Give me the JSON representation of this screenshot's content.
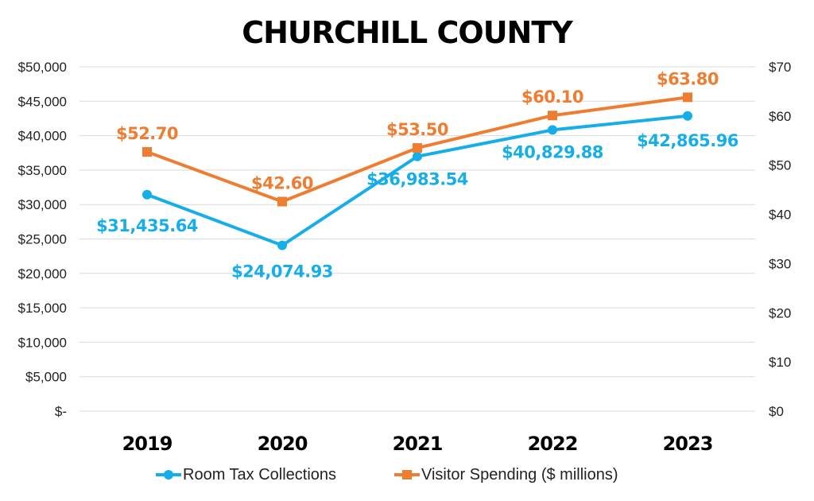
{
  "chart_data": {
    "type": "line",
    "title": "CHURCHILL COUNTY",
    "categories": [
      "2019",
      "2020",
      "2021",
      "2022",
      "2023"
    ],
    "y_left": {
      "ylim": [
        0,
        50000
      ],
      "ticks": [
        {
          "value": 0,
          "label": "$-"
        },
        {
          "value": 5000,
          "label": "$5,000"
        },
        {
          "value": 10000,
          "label": "$10,000"
        },
        {
          "value": 15000,
          "label": "$15,000"
        },
        {
          "value": 20000,
          "label": "$20,000"
        },
        {
          "value": 25000,
          "label": "$25,000"
        },
        {
          "value": 30000,
          "label": "$30,000"
        },
        {
          "value": 35000,
          "label": "$35,000"
        },
        {
          "value": 40000,
          "label": "$40,000"
        },
        {
          "value": 45000,
          "label": "$45,000"
        },
        {
          "value": 50000,
          "label": "$50,000"
        }
      ]
    },
    "y_right": {
      "ylim": [
        0,
        70
      ],
      "ticks": [
        {
          "value": 0,
          "label": "$0"
        },
        {
          "value": 10,
          "label": "$10"
        },
        {
          "value": 20,
          "label": "$20"
        },
        {
          "value": 30,
          "label": "$30"
        },
        {
          "value": 40,
          "label": "$40"
        },
        {
          "value": 50,
          "label": "$50"
        },
        {
          "value": 60,
          "label": "$60"
        },
        {
          "value": 70,
          "label": "$70"
        }
      ]
    },
    "grid": true,
    "legend_position": "bottom",
    "series": [
      {
        "name": "Room Tax Collections",
        "axis": "left",
        "marker": "circle",
        "color": "#16aee8",
        "values": [
          31435.64,
          24074.93,
          36983.54,
          40829.88,
          42865.96
        ],
        "labels": [
          "$31,435.64",
          "$24,074.93",
          "$36,983.54",
          "$40,829.88",
          "$42,865.96"
        ]
      },
      {
        "name": "Visitor Spending ($ millions)",
        "axis": "right",
        "marker": "square",
        "color": "#ee7d31",
        "values": [
          52.7,
          42.6,
          53.5,
          60.1,
          63.8
        ],
        "labels": [
          "$52.70",
          "$42.60",
          "$53.50",
          "$60.10",
          "$63.80"
        ]
      }
    ]
  }
}
